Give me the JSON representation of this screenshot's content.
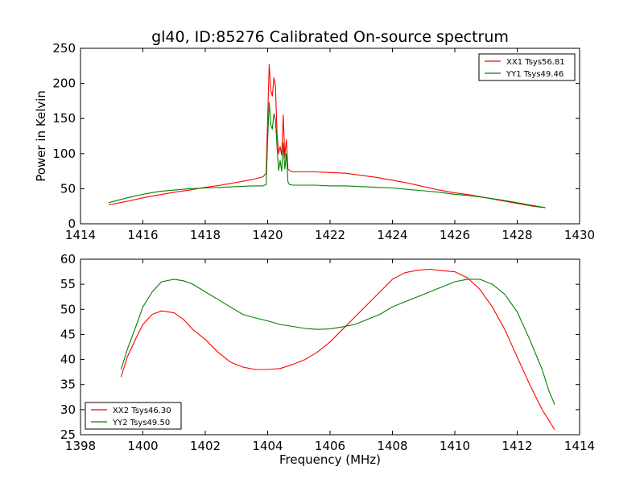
{
  "chart_data": [
    {
      "type": "line",
      "title": "gl40, ID:85276 Calibrated On-source spectrum",
      "xlabel": "",
      "ylabel": "Power in Kelvin",
      "xlim": [
        1414,
        1430
      ],
      "ylim": [
        0,
        250
      ],
      "xticks": [
        1414,
        1416,
        1418,
        1420,
        1422,
        1424,
        1426,
        1428,
        1430
      ],
      "yticks": [
        0,
        50,
        100,
        150,
        200,
        250
      ],
      "legend_position": "top-right",
      "series": [
        {
          "name": "XX1 Tsys56.81",
          "color": "#ff0000",
          "x": [
            1414.9,
            1415.5,
            1416.0,
            1416.5,
            1417.0,
            1417.5,
            1418.0,
            1418.5,
            1419.0,
            1419.5,
            1419.85,
            1419.95,
            1420.0,
            1420.05,
            1420.1,
            1420.15,
            1420.2,
            1420.25,
            1420.3,
            1420.35,
            1420.4,
            1420.45,
            1420.5,
            1420.55,
            1420.6,
            1420.65,
            1420.7,
            1420.8,
            1421.0,
            1421.5,
            1422.0,
            1422.5,
            1423.0,
            1423.5,
            1424.0,
            1424.5,
            1425.0,
            1425.5,
            1426.0,
            1426.5,
            1427.0,
            1427.5,
            1428.0,
            1428.5,
            1428.9
          ],
          "y": [
            27,
            32,
            37,
            41,
            45,
            48,
            52,
            55,
            59,
            63,
            67,
            72,
            150,
            227,
            190,
            182,
            208,
            196,
            130,
            100,
            110,
            98,
            155,
            95,
            120,
            78,
            76,
            74,
            74,
            74,
            73,
            72,
            69,
            66,
            62,
            58,
            53,
            48,
            44,
            41,
            37,
            33,
            29,
            25,
            23
          ]
        },
        {
          "name": "YY1 Tsys49.46",
          "color": "#008000",
          "x": [
            1414.9,
            1415.5,
            1416.0,
            1416.5,
            1417.0,
            1417.5,
            1418.0,
            1418.5,
            1419.0,
            1419.5,
            1419.85,
            1419.95,
            1420.0,
            1420.05,
            1420.1,
            1420.15,
            1420.2,
            1420.25,
            1420.3,
            1420.35,
            1420.4,
            1420.45,
            1420.5,
            1420.55,
            1420.6,
            1420.65,
            1420.7,
            1420.8,
            1421.0,
            1421.5,
            1422.0,
            1422.5,
            1423.0,
            1423.5,
            1424.0,
            1424.5,
            1425.0,
            1425.5,
            1426.0,
            1426.5,
            1427.0,
            1427.5,
            1428.0,
            1428.5,
            1428.9
          ],
          "y": [
            30,
            37,
            42,
            46,
            48,
            50,
            51,
            52,
            53,
            54,
            54,
            56,
            120,
            173,
            140,
            135,
            157,
            148,
            110,
            76,
            90,
            75,
            115,
            78,
            100,
            60,
            56,
            55,
            55,
            55,
            54,
            54,
            53,
            52,
            51,
            49,
            47,
            45,
            42,
            40,
            37,
            34,
            30,
            26,
            23
          ]
        }
      ]
    },
    {
      "type": "line",
      "title": "",
      "xlabel": "Frequency (MHz)",
      "ylabel": "",
      "xlim": [
        1398,
        1414
      ],
      "ylim": [
        25,
        60
      ],
      "xticks": [
        1398,
        1400,
        1402,
        1404,
        1406,
        1408,
        1410,
        1412,
        1414
      ],
      "yticks": [
        25,
        30,
        35,
        40,
        45,
        50,
        55,
        60
      ],
      "legend_position": "bottom-left",
      "series": [
        {
          "name": "XX2 Tsys46.30",
          "color": "#ff0000",
          "x": [
            1399.3,
            1399.5,
            1399.8,
            1400.0,
            1400.3,
            1400.6,
            1401.0,
            1401.3,
            1401.6,
            1402.0,
            1402.4,
            1402.8,
            1403.2,
            1403.6,
            1404.0,
            1404.4,
            1404.8,
            1405.2,
            1405.6,
            1406.0,
            1406.4,
            1406.8,
            1407.2,
            1407.6,
            1408.0,
            1408.4,
            1408.8,
            1409.2,
            1409.6,
            1410.0,
            1410.4,
            1410.8,
            1411.2,
            1411.6,
            1412.0,
            1412.4,
            1412.8,
            1413.0,
            1413.2
          ],
          "y": [
            36.5,
            40.5,
            44.5,
            47,
            49,
            49.7,
            49.3,
            48,
            46,
            44,
            41.5,
            39.5,
            38.5,
            38,
            38,
            38.2,
            39,
            40,
            41.5,
            43.5,
            46,
            48.5,
            51,
            53.5,
            56,
            57.3,
            57.8,
            58,
            57.7,
            57.5,
            56.3,
            54,
            50.5,
            46,
            40.5,
            35,
            30,
            28,
            26
          ]
        },
        {
          "name": "YY2 Tsys49.50",
          "color": "#008000",
          "x": [
            1399.3,
            1399.5,
            1399.8,
            1400.0,
            1400.3,
            1400.6,
            1401.0,
            1401.3,
            1401.6,
            1402.0,
            1402.4,
            1402.8,
            1403.2,
            1403.6,
            1404.0,
            1404.4,
            1404.8,
            1405.2,
            1405.6,
            1406.0,
            1406.4,
            1406.8,
            1407.2,
            1407.6,
            1408.0,
            1408.4,
            1408.8,
            1409.2,
            1409.6,
            1410.0,
            1410.4,
            1410.8,
            1411.2,
            1411.6,
            1412.0,
            1412.4,
            1412.8,
            1413.0,
            1413.2
          ],
          "y": [
            38,
            42,
            47,
            50.5,
            53.5,
            55.5,
            56,
            55.7,
            55,
            53.5,
            52,
            50.5,
            49,
            48.3,
            47.7,
            47,
            46.6,
            46.2,
            46,
            46.1,
            46.5,
            47,
            48,
            49,
            50.5,
            51.5,
            52.5,
            53.5,
            54.5,
            55.5,
            56,
            56,
            55,
            53,
            49.5,
            44,
            38,
            34,
            31
          ]
        }
      ]
    }
  ]
}
